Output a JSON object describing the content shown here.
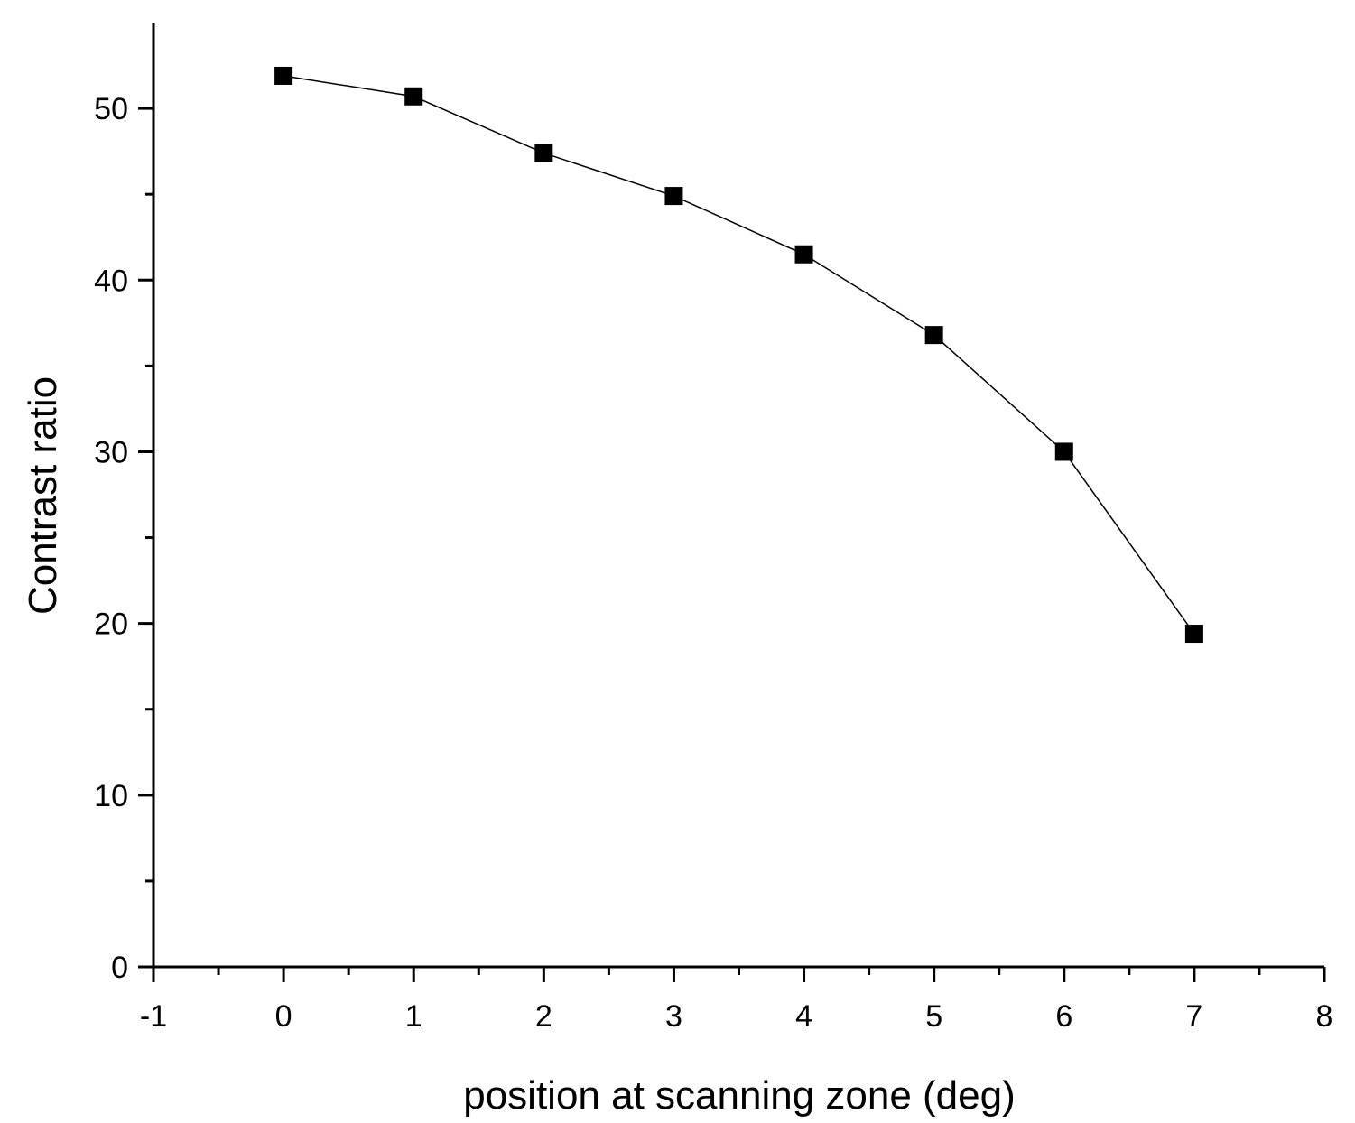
{
  "chart_data": {
    "type": "line",
    "title": "",
    "xlabel": "position at scanning zone (deg)",
    "ylabel": "Contrast ratio",
    "xlim": [
      -1,
      8
    ],
    "ylim": [
      0,
      55
    ],
    "x_ticks": [
      "-1",
      "0",
      "1",
      "2",
      "3",
      "4",
      "5",
      "6",
      "7",
      "8"
    ],
    "y_ticks": [
      "0",
      "10",
      "20",
      "30",
      "40",
      "50"
    ],
    "grid": false,
    "legend": "none",
    "series": [
      {
        "marker": "square",
        "color": "#000000",
        "x": [
          0,
          1,
          2,
          3,
          4,
          5,
          6,
          7
        ],
        "y": [
          51.9,
          50.7,
          47.4,
          44.9,
          41.5,
          36.8,
          30.0,
          19.4
        ]
      }
    ]
  }
}
